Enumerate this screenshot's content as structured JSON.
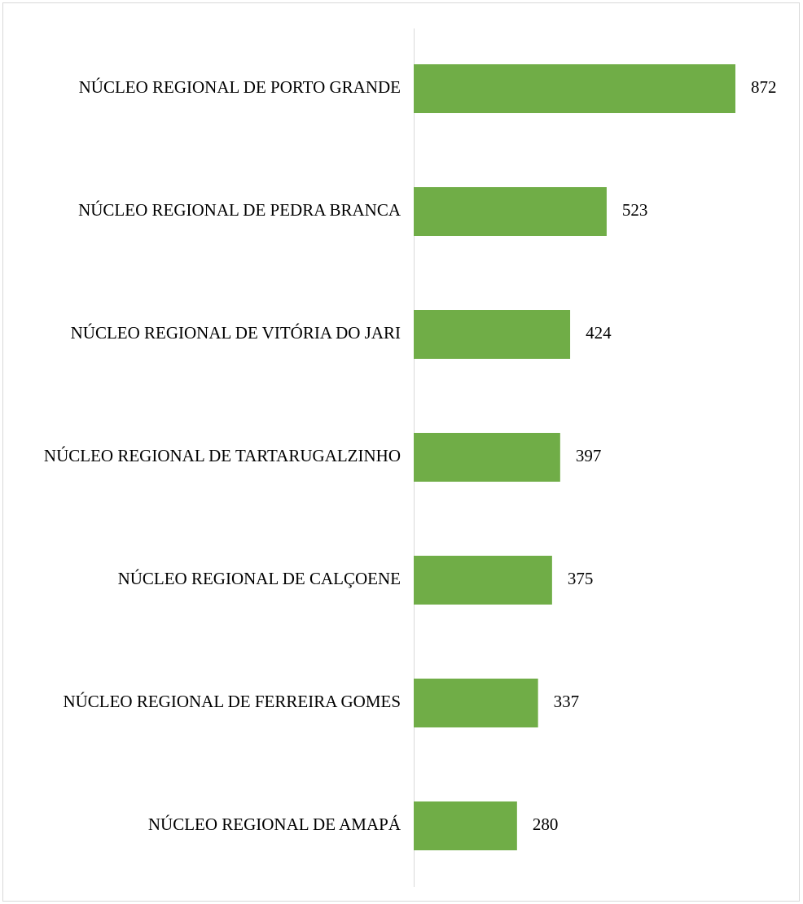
{
  "chart_data": {
    "type": "barh",
    "categories": [
      "NÚCLEO REGIONAL DE PORTO GRANDE",
      "NÚCLEO REGIONAL DE PEDRA BRANCA",
      "NÚCLEO REGIONAL DE VITÓRIA DO JARI",
      "NÚCLEO REGIONAL DE TARTARUGALZINHO",
      "NÚCLEO REGIONAL DE CALÇOENE",
      "NÚCLEO REGIONAL DE FERREIRA GOMES",
      "NÚCLEO REGIONAL DE AMAPÁ"
    ],
    "values": [
      872,
      523,
      424,
      397,
      375,
      337,
      280
    ],
    "color": "#70ad47"
  }
}
